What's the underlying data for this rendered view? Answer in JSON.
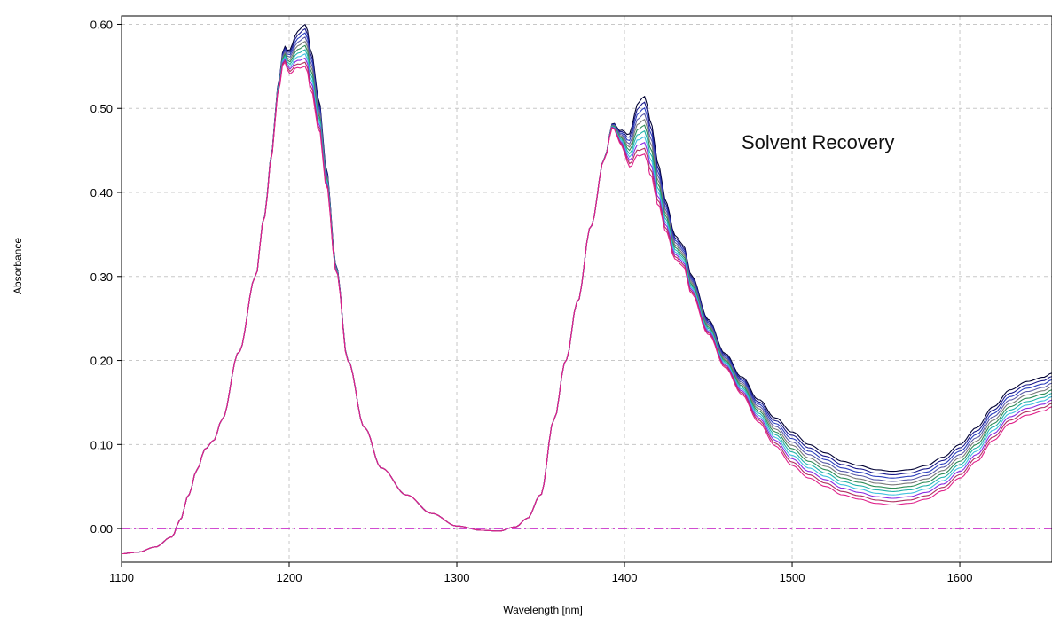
{
  "chart_data": {
    "type": "line",
    "title": "",
    "annotation": "Solvent Recovery",
    "xlabel": "Wavelength [nm]",
    "ylabel": "Absorbance",
    "xlim": [
      1100,
      1655
    ],
    "ylim": [
      -0.04,
      0.61
    ],
    "x_ticks": [
      "1100",
      "1200",
      "1300",
      "1400",
      "1500",
      "1600"
    ],
    "y_ticks": [
      "0.00",
      "0.10",
      "0.20",
      "0.30",
      "0.40",
      "0.50",
      "0.60"
    ],
    "grid": true,
    "legend": "none",
    "baseline": {
      "y": 0.0,
      "color": "#cc33cc"
    },
    "colors": [
      "#000033",
      "#1a1a8c",
      "#2c3fbf",
      "#5a5aa8",
      "#7a7a7a",
      "#2e8b57",
      "#20b2aa",
      "#40c0e0",
      "#8a2be2",
      "#b03060",
      "#e0208a"
    ],
    "series": [
      {
        "x": [
          1100,
          1110,
          1120,
          1130,
          1135,
          1140,
          1145,
          1150,
          1155,
          1160,
          1170,
          1180,
          1185,
          1190,
          1193,
          1197,
          1200,
          1205,
          1210,
          1213,
          1218,
          1222,
          1228,
          1235,
          1245,
          1255,
          1270,
          1285,
          1300,
          1315,
          1325,
          1335,
          1342,
          1350,
          1358,
          1365,
          1372,
          1380,
          1388,
          1393,
          1398,
          1403,
          1408,
          1412,
          1416,
          1420,
          1425,
          1430,
          1435,
          1440,
          1450,
          1460,
          1470,
          1480,
          1490,
          1500,
          1510,
          1520,
          1530,
          1540,
          1550,
          1560,
          1570,
          1580,
          1590,
          1600,
          1610,
          1620,
          1630,
          1640,
          1650,
          1655
        ],
        "y": [
          -0.03,
          -0.028,
          -0.022,
          -0.01,
          0.01,
          0.04,
          0.07,
          0.095,
          0.105,
          0.13,
          0.21,
          0.3,
          0.37,
          0.45,
          0.52,
          0.565,
          0.555,
          0.57,
          0.575,
          0.545,
          0.49,
          0.42,
          0.31,
          0.2,
          0.12,
          0.072,
          0.04,
          0.018,
          0.003,
          -0.002,
          -0.003,
          0.002,
          0.012,
          0.04,
          0.13,
          0.2,
          0.27,
          0.36,
          0.44,
          0.48,
          0.465,
          0.45,
          0.475,
          0.48,
          0.45,
          0.41,
          0.37,
          0.335,
          0.325,
          0.29,
          0.24,
          0.2,
          0.17,
          0.14,
          0.115,
          0.095,
          0.08,
          0.07,
          0.06,
          0.055,
          0.05,
          0.048,
          0.05,
          0.055,
          0.065,
          0.08,
          0.1,
          0.125,
          0.145,
          0.155,
          0.16,
          0.165
        ]
      }
    ],
    "variation": {
      "peak1": {
        "center": 1210,
        "width": 9,
        "amp": 0.05
      },
      "peak2": {
        "center": 1411,
        "width": 8,
        "amp": 0.06
      },
      "shoulder": {
        "center": 1432,
        "width": 14,
        "amp": 0.025
      },
      "tail_start": 1440,
      "tail_amp": 0.04
    }
  }
}
